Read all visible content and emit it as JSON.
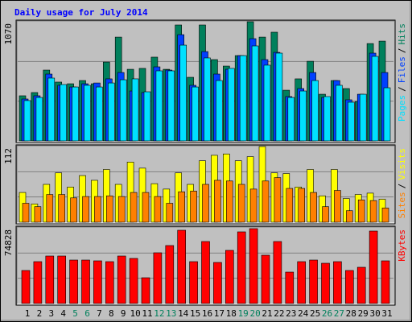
{
  "chart_data": [
    {
      "type": "bar",
      "title": "Daily usage for July 2014",
      "ylim": [
        0,
        1070
      ],
      "yticks": [
        1070
      ],
      "grid_lines": 3,
      "legend_separator": "/",
      "series": [
        {
          "name": "Hits",
          "color": "#00805c",
          "values": [
            405,
            434,
            636,
            528,
            513,
            542,
            513,
            708,
            932,
            643,
            651,
            752,
            643,
            1041,
            571,
            1041,
            730,
            672,
            766,
            1070,
            932,
            976,
            455,
            557,
            715,
            419,
            542,
            470,
            354,
            874,
            896
          ]
        },
        {
          "name": "Files",
          "color": "#0040ff",
          "values": [
            376,
            405,
            600,
            499,
            484,
            513,
            520,
            557,
            614,
            448,
            434,
            665,
            636,
            954,
            499,
            802,
            600,
            643,
            766,
            918,
            730,
            795,
            398,
            470,
            614,
            390,
            542,
            369,
            419,
            788,
            614
          ]
        },
        {
          "name": "Pages",
          "color": "#00e0ff",
          "values": [
            362,
            390,
            564,
            506,
            484,
            499,
            484,
            520,
            549,
            557,
            441,
            629,
            629,
            860,
            484,
            745,
            542,
            651,
            766,
            853,
            680,
            788,
            390,
            448,
            542,
            398,
            499,
            347,
            419,
            759,
            477
          ]
        }
      ]
    },
    {
      "type": "bar",
      "ylim": [
        0,
        112
      ],
      "yticks": [
        112
      ],
      "grid_lines": 3,
      "legend_separator": "/",
      "series": [
        {
          "name": "Visits",
          "color": "#ffff00",
          "values": [
            44,
            27,
            56,
            73,
            52,
            69,
            62,
            78,
            56,
            89,
            80,
            57,
            49,
            73,
            56,
            91,
            99,
            101,
            91,
            97,
            112,
            73,
            72,
            52,
            78,
            39,
            78,
            35,
            41,
            43,
            34
          ]
        },
        {
          "name": "Sites",
          "color": "#ff8000",
          "values": [
            28,
            23,
            41,
            41,
            36,
            38,
            38,
            39,
            38,
            44,
            44,
            38,
            28,
            45,
            46,
            56,
            62,
            61,
            56,
            49,
            61,
            66,
            50,
            50,
            44,
            23,
            47,
            17,
            33,
            32,
            21
          ]
        }
      ]
    },
    {
      "type": "bar",
      "ylim": [
        0,
        74828
      ],
      "yticks": [
        74828
      ],
      "grid_lines": 3,
      "categories": [
        "1",
        "2",
        "3",
        "4",
        "5",
        "6",
        "7",
        "8",
        "9",
        "10",
        "11",
        "12",
        "13",
        "14",
        "15",
        "16",
        "17",
        "18",
        "19",
        "20",
        "21",
        "22",
        "23",
        "24",
        "25",
        "26",
        "27",
        "28",
        "29",
        "30",
        "31"
      ],
      "category_colors": [
        "#000000",
        "#000000",
        "#000000",
        "#000000",
        "#00805c",
        "#00805c",
        "#000000",
        "#000000",
        "#000000",
        "#000000",
        "#000000",
        "#00805c",
        "#00805c",
        "#000000",
        "#000000",
        "#000000",
        "#000000",
        "#000000",
        "#00805c",
        "#00805c",
        "#000000",
        "#000000",
        "#000000",
        "#000000",
        "#000000",
        "#00805c",
        "#00805c",
        "#000000",
        "#000000",
        "#000000",
        "#000000"
      ],
      "series": [
        {
          "name": "KBytes",
          "color": "#ff0000",
          "values": [
            32640,
            41390,
            46960,
            46960,
            42980,
            42980,
            42190,
            41390,
            46960,
            44580,
            25470,
            50150,
            57310,
            72440,
            41390,
            61290,
            40600,
            52540,
            70850,
            74030,
            47760,
            61290,
            31040,
            41390,
            42980,
            39800,
            41390,
            32640,
            35820,
            71640,
            42190
          ]
        }
      ]
    }
  ]
}
